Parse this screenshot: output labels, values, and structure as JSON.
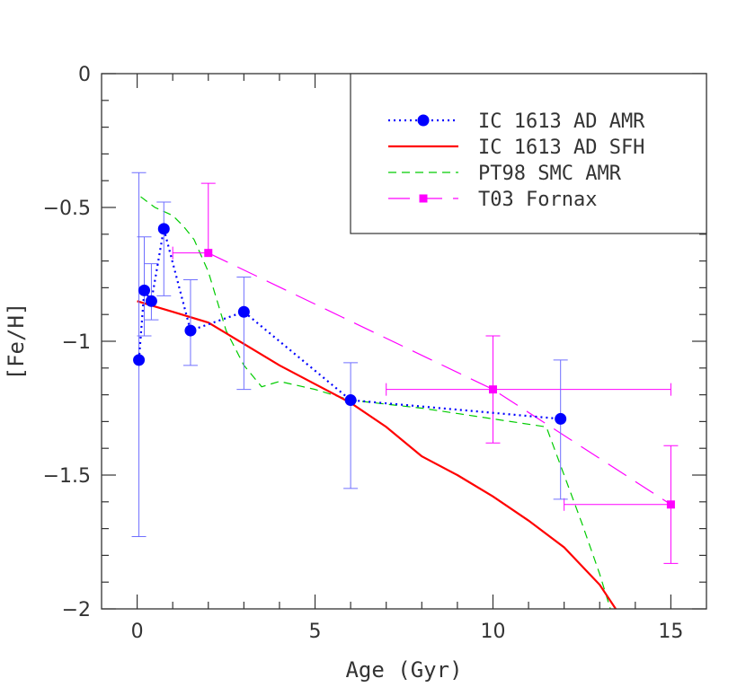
{
  "chart_data": {
    "type": "line",
    "xlabel": "Age (Gyr)",
    "ylabel": "[Fe/H]",
    "xlim": [
      -1,
      16
    ],
    "ylim": [
      -2,
      0
    ],
    "xticks": [
      0,
      5,
      10,
      15
    ],
    "xtick_labels": [
      "0",
      "5",
      "10",
      "15"
    ],
    "yticks": [
      0,
      -0.5,
      -1,
      -1.5,
      -2
    ],
    "ytick_labels": [
      "0",
      "−0.5",
      "−1",
      "−1.5",
      "−2"
    ],
    "legend_position": "top-right",
    "grid": false,
    "series": [
      {
        "name": "IC 1613 AD AMR",
        "color": "#0000ff",
        "line_style": "dotted",
        "marker": "circle",
        "x": [
          0.05,
          0.2,
          0.4,
          0.75,
          1.5,
          3.0,
          6.0,
          11.9
        ],
        "y": [
          -1.07,
          -0.81,
          -0.85,
          -0.58,
          -0.96,
          -0.89,
          -1.22,
          -1.29
        ],
        "y_err_low": [
          0.66,
          0.17,
          0.07,
          0.25,
          0.13,
          0.29,
          0.33,
          0.3
        ],
        "y_err_high": [
          0.7,
          0.2,
          0.14,
          0.1,
          0.19,
          0.13,
          0.14,
          0.22
        ]
      },
      {
        "name": "IC 1613 AD SFH",
        "color": "#ff0000",
        "line_style": "solid",
        "x": [
          0,
          0.5,
          1,
          2,
          3,
          4,
          5,
          6,
          7,
          8,
          9,
          10,
          11,
          12,
          13,
          13.5
        ],
        "y": [
          -0.85,
          -0.87,
          -0.89,
          -0.93,
          -1.01,
          -1.09,
          -1.16,
          -1.23,
          -1.32,
          -1.43,
          -1.5,
          -1.58,
          -1.67,
          -1.77,
          -1.91,
          -2.01
        ]
      },
      {
        "name": "PT98 SMC AMR",
        "color": "#00cc00",
        "line_style": "dashed",
        "x": [
          0.1,
          0.5,
          1,
          1.3,
          1.6,
          2.0,
          2.5,
          3.0,
          3.5,
          4.0,
          5.0,
          6.0,
          8.0,
          10.0,
          11.5,
          12.0,
          12.5,
          13.0,
          13.3
        ],
        "y": [
          -0.46,
          -0.5,
          -0.53,
          -0.57,
          -0.62,
          -0.74,
          -0.96,
          -1.09,
          -1.17,
          -1.15,
          -1.18,
          -1.22,
          -1.25,
          -1.29,
          -1.32,
          -1.5,
          -1.68,
          -1.87,
          -2.0
        ]
      },
      {
        "name": "T03 Fornax",
        "color": "#ff00ff",
        "line_style": "long-dashed",
        "marker": "square",
        "x": [
          2,
          10,
          15
        ],
        "y": [
          -0.67,
          -1.18,
          -1.61
        ],
        "x_err_low": [
          1.0,
          3.0,
          3.0
        ],
        "x_err_high": [
          0.0,
          5.0,
          0.0
        ],
        "y_err_low": [
          0.0,
          0.2,
          0.22
        ],
        "y_err_high": [
          0.26,
          0.2,
          0.22
        ]
      }
    ]
  }
}
